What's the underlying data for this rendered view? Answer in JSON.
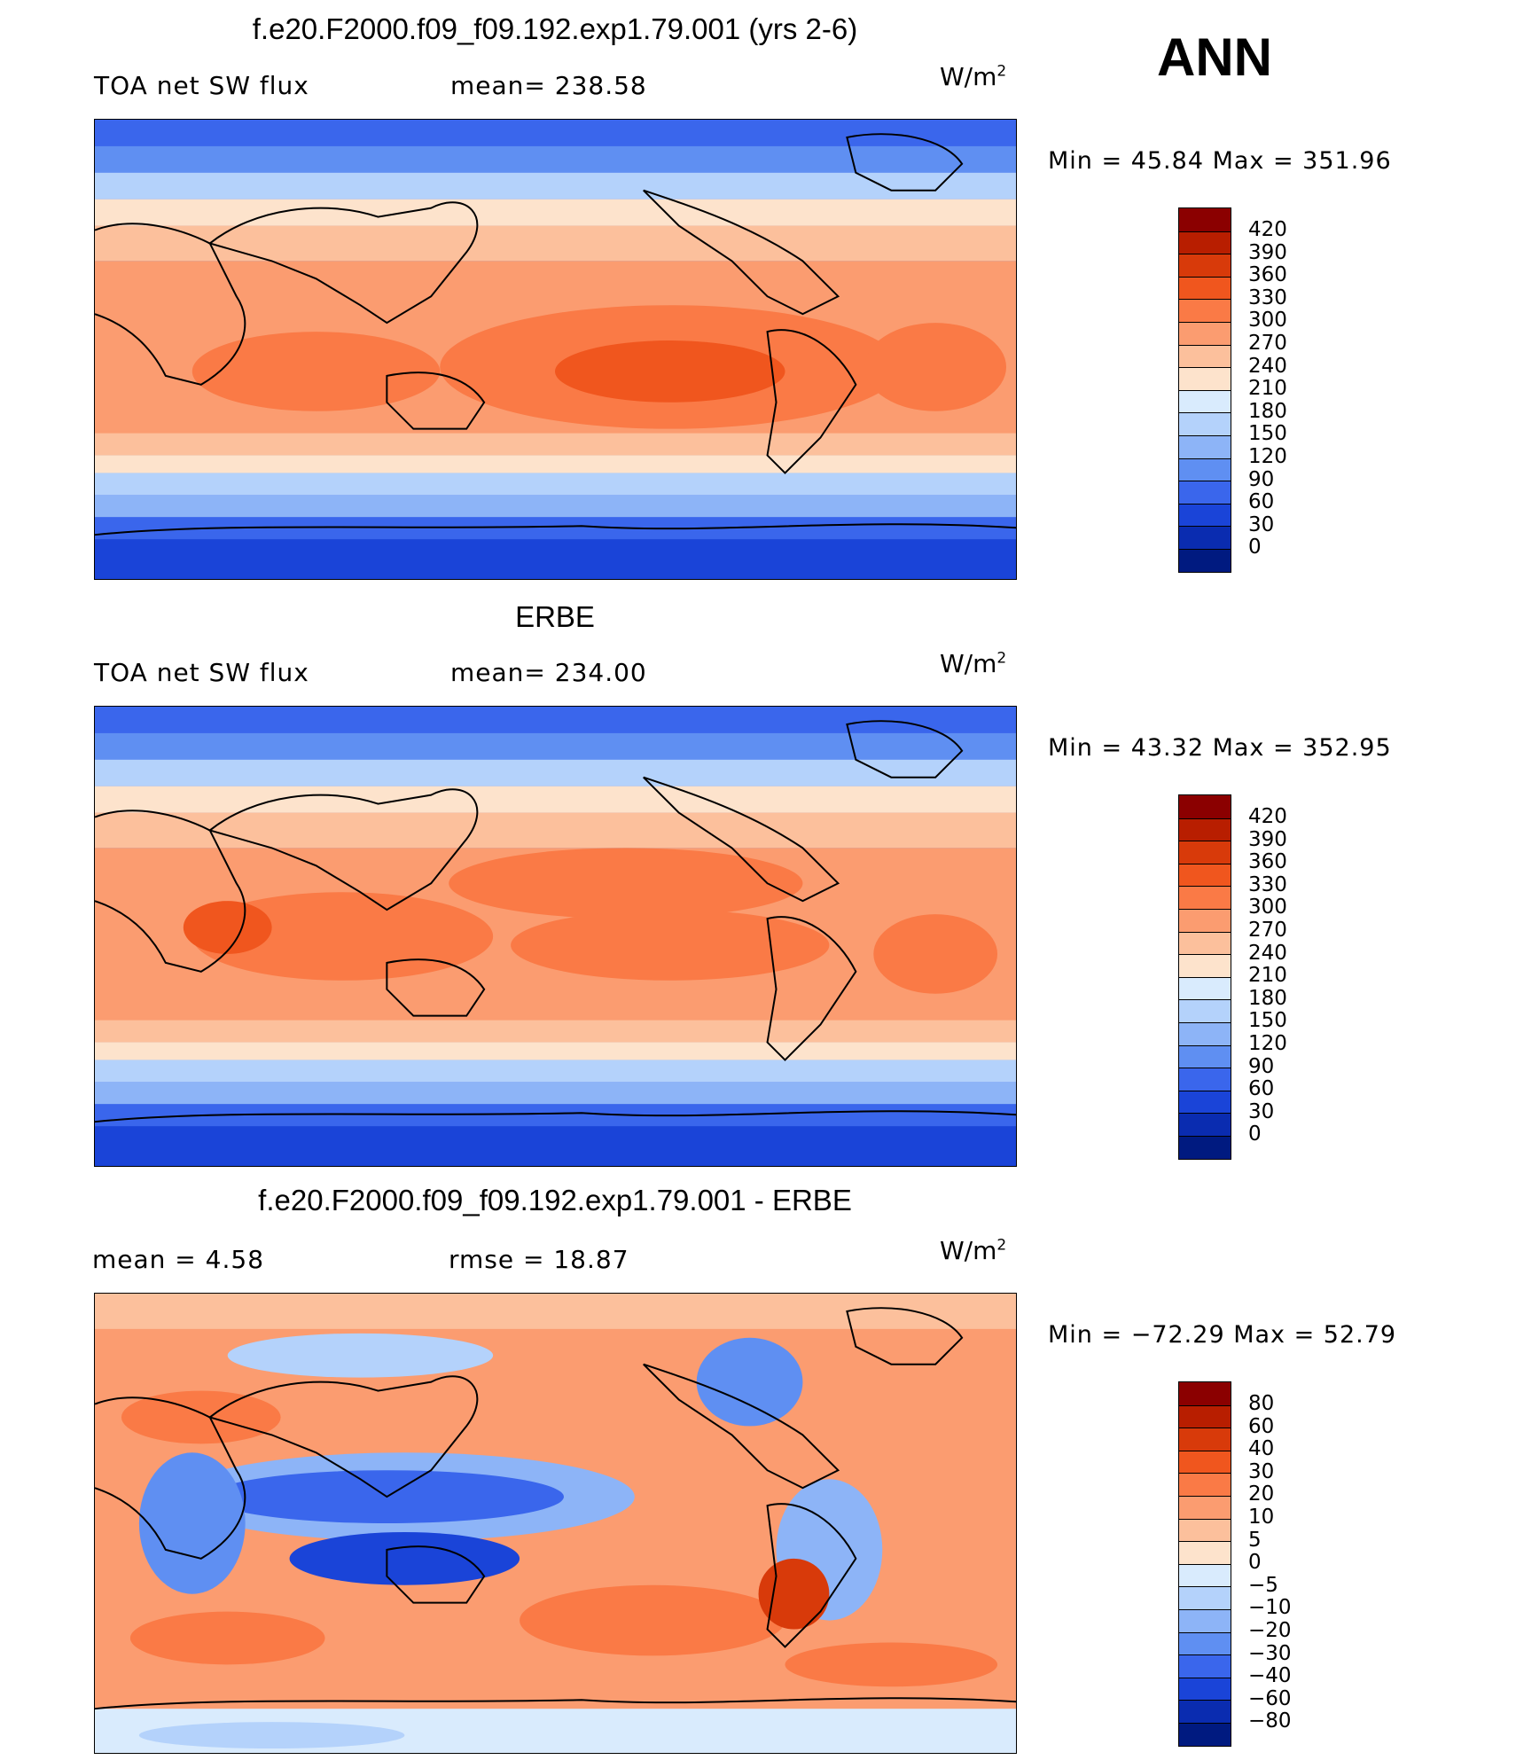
{
  "season": "ANN",
  "units_base": "W/m",
  "units_exp": "2",
  "panels": [
    {
      "title": "f.e20.F2000.f09_f09.192.exp1.79.001 (yrs 2-6)",
      "left_label": "TOA net SW flux",
      "right_label": "mean= 238.58",
      "minmax": "Min =   45.84 Max = 351.96",
      "levels": [
        "420",
        "390",
        "360",
        "330",
        "300",
        "270",
        "240",
        "210",
        "180",
        "150",
        "120",
        "90",
        "60",
        "30",
        "0"
      ],
      "colors": [
        "#8b0000",
        "#b81e00",
        "#d83a0a",
        "#f0561e",
        "#fa7a46",
        "#fb9c70",
        "#fcc09c",
        "#fde3cc",
        "#d9ebfd",
        "#b4d2fb",
        "#8db4f7",
        "#5f8ff2",
        "#3a66ec",
        "#1a44d8",
        "#0a2cb0",
        "#001a80"
      ]
    },
    {
      "title": "ERBE",
      "left_label": "TOA net SW flux",
      "right_label": "mean= 234.00",
      "minmax": "Min =   43.32 Max = 352.95",
      "levels": [
        "420",
        "390",
        "360",
        "330",
        "300",
        "270",
        "240",
        "210",
        "180",
        "150",
        "120",
        "90",
        "60",
        "30",
        "0"
      ],
      "colors": [
        "#8b0000",
        "#b81e00",
        "#d83a0a",
        "#f0561e",
        "#fa7a46",
        "#fb9c70",
        "#fcc09c",
        "#fde3cc",
        "#d9ebfd",
        "#b4d2fb",
        "#8db4f7",
        "#5f8ff2",
        "#3a66ec",
        "#1a44d8",
        "#0a2cb0",
        "#001a80"
      ]
    },
    {
      "title": "f.e20.F2000.f09_f09.192.exp1.79.001 - ERBE",
      "left_label": "mean =    4.58",
      "right_label": "rmse =   18.87",
      "minmax": "Min = −72.29 Max =   52.79",
      "levels": [
        "80",
        "60",
        "40",
        "30",
        "20",
        "10",
        "5",
        "0",
        "−5",
        "−10",
        "−20",
        "−30",
        "−40",
        "−60",
        "−80"
      ],
      "colors": [
        "#8b0000",
        "#b81e00",
        "#d83a0a",
        "#f0561e",
        "#fa7a46",
        "#fb9c70",
        "#fcc09c",
        "#fde3cc",
        "#d9ebfd",
        "#b4d2fb",
        "#8db4f7",
        "#5f8ff2",
        "#3a66ec",
        "#1a44d8",
        "#0a2cb0",
        "#001a80"
      ]
    }
  ]
}
